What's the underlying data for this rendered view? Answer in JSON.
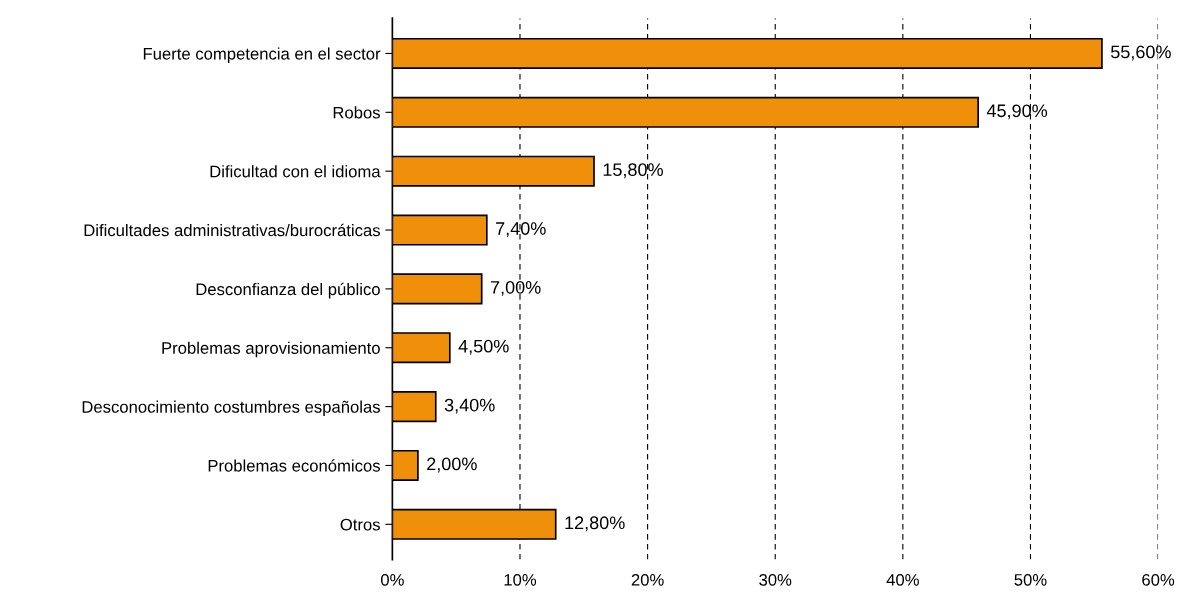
{
  "chart_data": {
    "type": "bar",
    "orientation": "horizontal",
    "categories": [
      "Fuerte competencia en el sector",
      "Robos",
      "Dificultad con el idioma",
      "Dificultades administrativas/burocráticas",
      "Desconfianza del público",
      "Problemas aprovisionamiento",
      "Desconocimiento costumbres españolas",
      "Problemas económicos",
      "Otros"
    ],
    "values": [
      55.6,
      45.9,
      15.8,
      7.4,
      7.0,
      4.5,
      3.4,
      2.0,
      12.8
    ],
    "value_labels": [
      "55,60%",
      "45,90%",
      "15,80%",
      "7,40%",
      "7,00%",
      "4,50%",
      "3,40%",
      "2,00%",
      "12,80%"
    ],
    "color": "#f0900a",
    "xlim": [
      0,
      60
    ],
    "xticks": [
      {
        "value": 0,
        "label": "0%"
      },
      {
        "value": 10,
        "label": "10%"
      },
      {
        "value": 20,
        "label": "20%"
      },
      {
        "value": 30,
        "label": "30%"
      },
      {
        "value": 40,
        "label": "40%"
      },
      {
        "value": 50,
        "label": "50%"
      },
      {
        "value": 60,
        "label": "60%"
      }
    ],
    "grid": "x"
  }
}
